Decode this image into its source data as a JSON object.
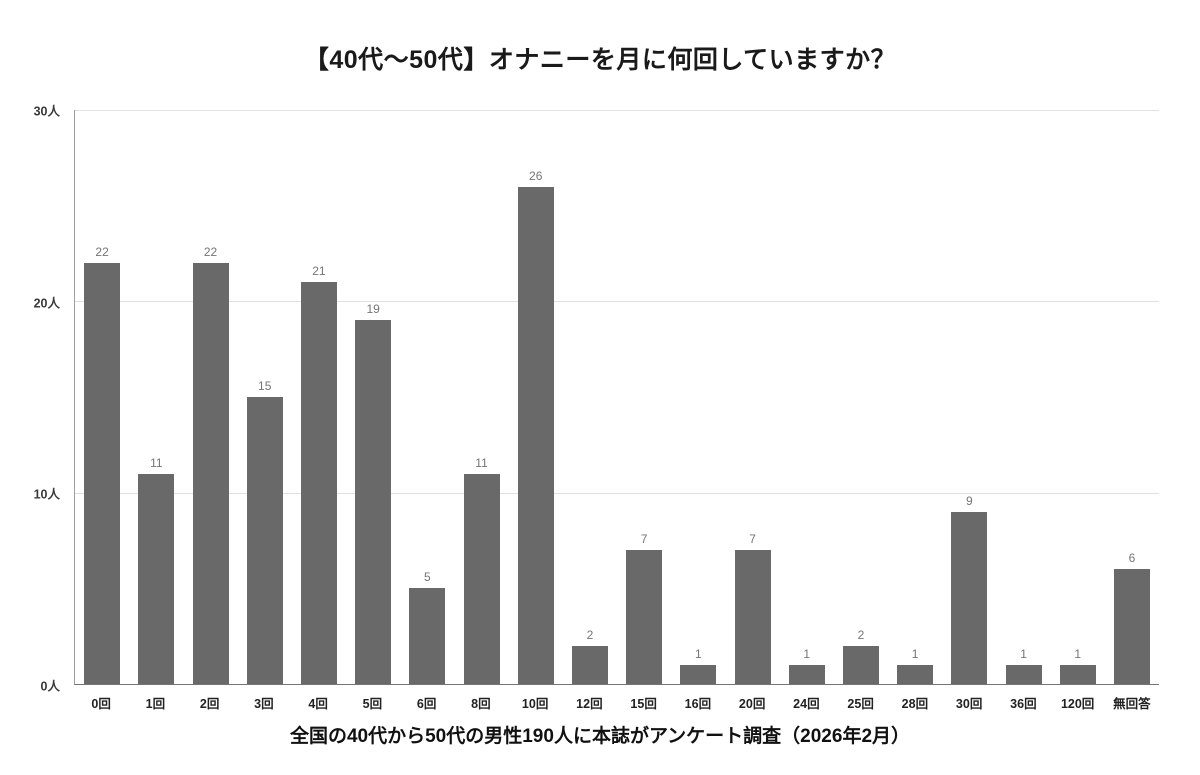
{
  "chart_data": {
    "type": "bar",
    "title": "【40代～50代】オナニーを月に何回していますか？",
    "subtitle": "全国の40代から50代の男性190人に本誌がアンケート調査（2026年2月）",
    "categories": [
      "0回",
      "1回",
      "2回",
      "3回",
      "4回",
      "5回",
      "6回",
      "8回",
      "10回",
      "12回",
      "15回",
      "16回",
      "20回",
      "24回",
      "25回",
      "28回",
      "30回",
      "36回",
      "120回",
      "無回答"
    ],
    "values": [
      22,
      11,
      22,
      15,
      21,
      19,
      5,
      11,
      26,
      2,
      7,
      1,
      7,
      1,
      2,
      1,
      9,
      1,
      1,
      6
    ],
    "xlabel": "",
    "ylabel": "",
    "ylim": [
      0,
      30
    ],
    "y_ticks_top_to_bottom": [
      "30人",
      "20人",
      "10人",
      "0人"
    ],
    "grid": true,
    "legend_position": "none",
    "value_labels_shown": true,
    "colors": {
      "bar": "#696969",
      "value_label": "#757575",
      "gridline": "#e0e0e0",
      "axis": "#757575",
      "title_text": "#1a1a1a",
      "background": "#ffffff"
    }
  }
}
